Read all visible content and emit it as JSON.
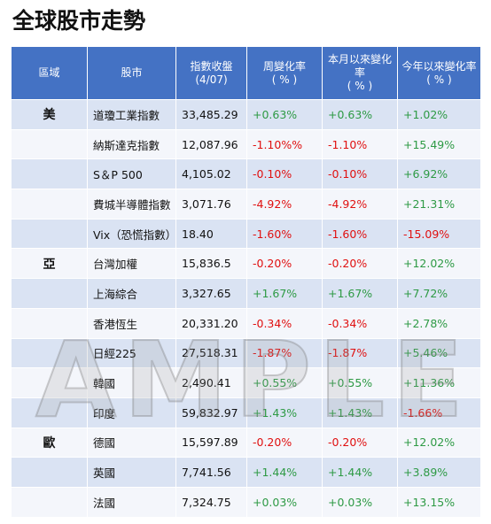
{
  "header": {
    "title": "全球股市走勢"
  },
  "watermark": "AMPLE",
  "positive_color": "#2e9a45",
  "negative_color": "#e01010",
  "table": {
    "columns": [
      [
        "區域"
      ],
      [
        "股市"
      ],
      [
        "指數收盤",
        "(4/07)"
      ],
      [
        "周變化率",
        "( % )"
      ],
      [
        "本月以來變化率",
        "( % )"
      ],
      [
        "今年以來變化率",
        "( % )"
      ]
    ],
    "rows": [
      {
        "region": "美",
        "cells": [
          "道瓊工業指數",
          "33,485.29",
          "+0.63%",
          "+0.63%",
          "+1.02%"
        ]
      },
      {
        "cells": [
          "納斯達克指數",
          "12,087.96",
          "-1.10%%",
          "-1.10%",
          "+15.49%"
        ]
      },
      {
        "cells": [
          "S＆P 500",
          "4,105.02",
          "-0.10%",
          "-0.10%",
          "+6.92%"
        ]
      },
      {
        "cells": [
          "費城半導體指數",
          "3,071.76",
          "-4.92%",
          "-4.92%",
          "+21.31%"
        ]
      },
      {
        "cells": [
          "Vix（恐慌指數）",
          "18.40",
          "-1.60%",
          "-1.60%",
          "-15.09%"
        ]
      },
      {
        "region": "亞",
        "cells": [
          "台灣加權",
          "15,836.5",
          "-0.20%",
          "-0.20%",
          "+12.02%"
        ]
      },
      {
        "cells": [
          "上海綜合",
          "3,327.65",
          "+1.67%",
          "+1.67%",
          "+7.72%"
        ]
      },
      {
        "cells": [
          "香港恆生",
          "20,331.20",
          "-0.34%",
          "-0.34%",
          "+2.78%"
        ]
      },
      {
        "cells": [
          "日經225",
          "27,518.31",
          "-1.87%",
          "-1.87%",
          "+5.46%"
        ]
      },
      {
        "cells": [
          "韓國",
          "2,490.41",
          "+0.55%",
          "+0.55%",
          "+11.36%"
        ]
      },
      {
        "cells": [
          "印度",
          "59,832.97",
          "+1.43%",
          "+1.43%",
          "-1.66%"
        ]
      },
      {
        "region": "歐",
        "cells": [
          "德國",
          "15,597.89",
          "-0.20%",
          "-0.20%",
          "+12.02%"
        ]
      },
      {
        "cells": [
          "英國",
          "7,741.56",
          "+1.44%",
          "+1.44%",
          "+3.89%"
        ]
      },
      {
        "cells": [
          "法國",
          "7,324.75",
          "+0.03%",
          "+0.03%",
          "+13.15%"
        ]
      }
    ]
  }
}
